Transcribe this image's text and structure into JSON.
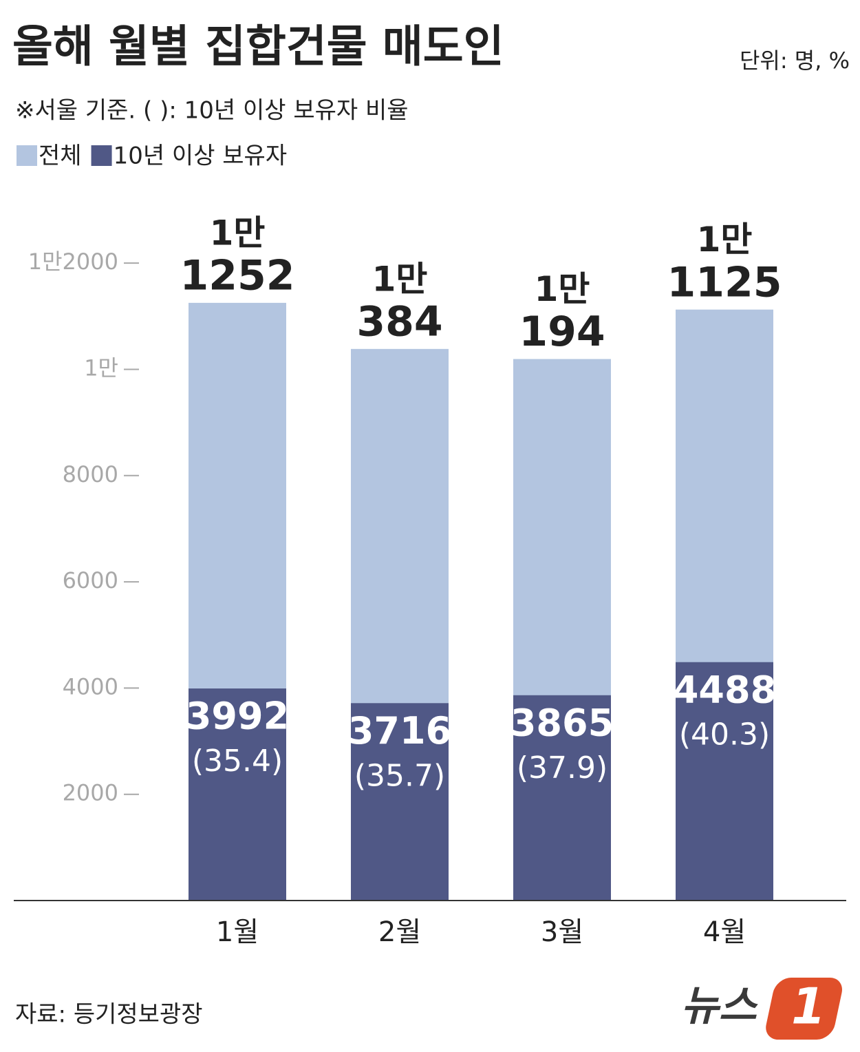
{
  "chart_data": {
    "type": "bar",
    "title": "올해 월별 집합건물 매도인",
    "unit": "단위: 명, %",
    "subtitle": "※서울 기준. ( ): 10년 이상 보유자 비율",
    "source": "자료: 등기정보광장",
    "logo": {
      "text": "뉴스",
      "mark": "1"
    },
    "categories": [
      "1월",
      "2월",
      "3월",
      "4월"
    ],
    "series": [
      {
        "name": "전체",
        "color": "#b3c5e0",
        "values": [
          11252,
          10384,
          10194,
          11125
        ],
        "value_labels": [
          [
            "1만",
            "1252"
          ],
          [
            "1만",
            "384"
          ],
          [
            "1만",
            "194"
          ],
          [
            "1만",
            "1125"
          ]
        ]
      },
      {
        "name": "10년 이상 보유자",
        "color": "#505886",
        "values": [
          3992,
          3716,
          3865,
          4488
        ],
        "share_labels": [
          "(35.4)",
          "(35.7)",
          "(37.9)",
          "(40.3)"
        ]
      }
    ],
    "ylim": [
      0,
      13000
    ],
    "yticks": [
      2000,
      4000,
      6000,
      8000,
      {
        "value": 10000,
        "label": "1만"
      },
      {
        "value": 12000,
        "label": "1만2000"
      }
    ]
  }
}
